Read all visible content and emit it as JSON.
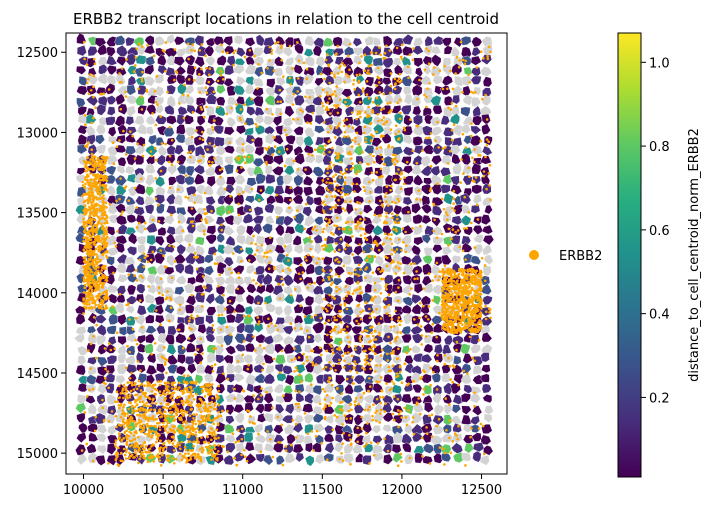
{
  "chart_data": {
    "type": "scatter",
    "title": "ERBB2 transcript locations in relation to the cell centroid",
    "xlabel": "",
    "ylabel": "",
    "xlim": [
      9890,
      12660
    ],
    "ylim": [
      15130,
      12380
    ],
    "y_inverted": true,
    "x_ticks": [
      10000,
      10500,
      11000,
      11500,
      12000,
      12500
    ],
    "y_ticks": [
      12500,
      13000,
      13500,
      14000,
      14500,
      15000
    ],
    "grid": false,
    "background_layer": {
      "description_value": "cell polygons colored by distance_to_cell_centroid_norm_ERBB2; cells without ERBB2 in light gray",
      "no_value_color": "#d3d3d3"
    },
    "series": [
      {
        "name": "ERBB2",
        "color": "#ffa500",
        "marker": "o",
        "dense_regions": [
          {
            "x": [
              10000,
              10150
            ],
            "y": [
              13150,
              14100
            ]
          },
          {
            "x": [
              10200,
              10850
            ],
            "y": [
              14550,
              15050
            ]
          },
          {
            "x": [
              12250,
              12500
            ],
            "y": [
              13850,
              14250
            ]
          },
          {
            "x": [
              11500,
              12000
            ],
            "y": [
              12500,
              14800
            ]
          }
        ]
      }
    ],
    "legend": {
      "entries": [
        "ERBB2"
      ],
      "placement": "right"
    },
    "colorbar": {
      "label": "distance_to_cell_centroid_norm_ERBB2",
      "colormap": "viridis",
      "range": [
        0.01,
        1.07
      ],
      "ticks": [
        0.2,
        0.4,
        0.6,
        0.8,
        1.0
      ],
      "tick_labels": [
        "0.2",
        "0.4",
        "0.6",
        "0.8",
        "1.0"
      ]
    },
    "x_tick_labels": [
      "10000",
      "10500",
      "11000",
      "11500",
      "12000",
      "12500"
    ],
    "y_tick_labels": [
      "12500",
      "13000",
      "13500",
      "14000",
      "14500",
      "15000"
    ]
  },
  "colors": {
    "viridis": [
      "#440154",
      "#472d7b",
      "#3b528b",
      "#2c728e",
      "#21918c",
      "#28ae80",
      "#5ec962",
      "#addc30",
      "#fde725"
    ],
    "gray": "#d3d3d3",
    "orange": "#ffa500"
  }
}
